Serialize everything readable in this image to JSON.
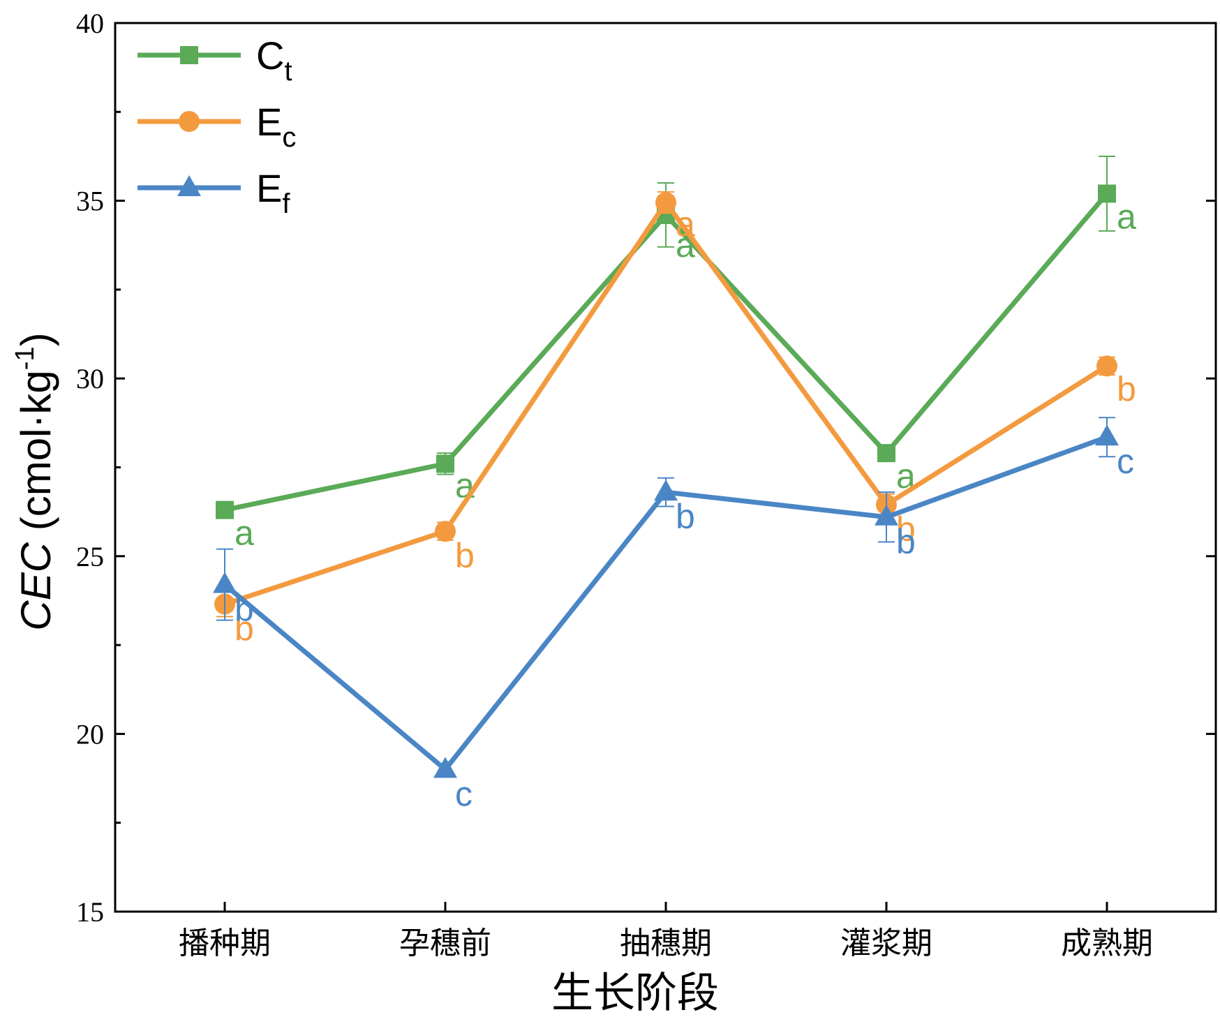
{
  "chart_data": {
    "type": "line",
    "xlabel": "生长阶段",
    "ylabel": {
      "italic": "CEC",
      "unit_prefix": " (cmol·kg",
      "unit_sup": "-1",
      "unit_suffix": ")"
    },
    "ylim": [
      15,
      40
    ],
    "yticks": [
      "15",
      "20",
      "25",
      "30",
      "35",
      "40"
    ],
    "categories": [
      "播种期",
      "孕穗前",
      "抽穗期",
      "灌浆期",
      "成熟期"
    ],
    "grid": false,
    "legend_position": "top-left",
    "series": [
      {
        "name": "C",
        "sub": "t",
        "color": "#5aaa57",
        "marker": "square",
        "values": [
          26.3,
          27.6,
          34.6,
          27.9,
          35.2
        ],
        "errors": [
          0.0,
          0.3,
          0.9,
          0.0,
          1.05
        ],
        "labels": [
          "a",
          "a",
          "a",
          "a",
          "a"
        ]
      },
      {
        "name": "E",
        "sub": "c",
        "color": "#f39a3f",
        "marker": "circle",
        "values": [
          23.65,
          25.7,
          34.95,
          26.45,
          30.35
        ],
        "errors": [
          0.35,
          0.25,
          0.3,
          0.3,
          0.25
        ],
        "labels": [
          "b",
          "b",
          "a",
          "b",
          "b"
        ]
      },
      {
        "name": "E",
        "sub": "f",
        "color": "#4a86c5",
        "marker": "triangle",
        "values": [
          24.2,
          19.0,
          26.8,
          26.1,
          28.35
        ],
        "errors": [
          1.0,
          0.0,
          0.4,
          0.7,
          0.55
        ],
        "labels": [
          "b",
          "c",
          "b",
          "b",
          "c"
        ]
      }
    ]
  }
}
